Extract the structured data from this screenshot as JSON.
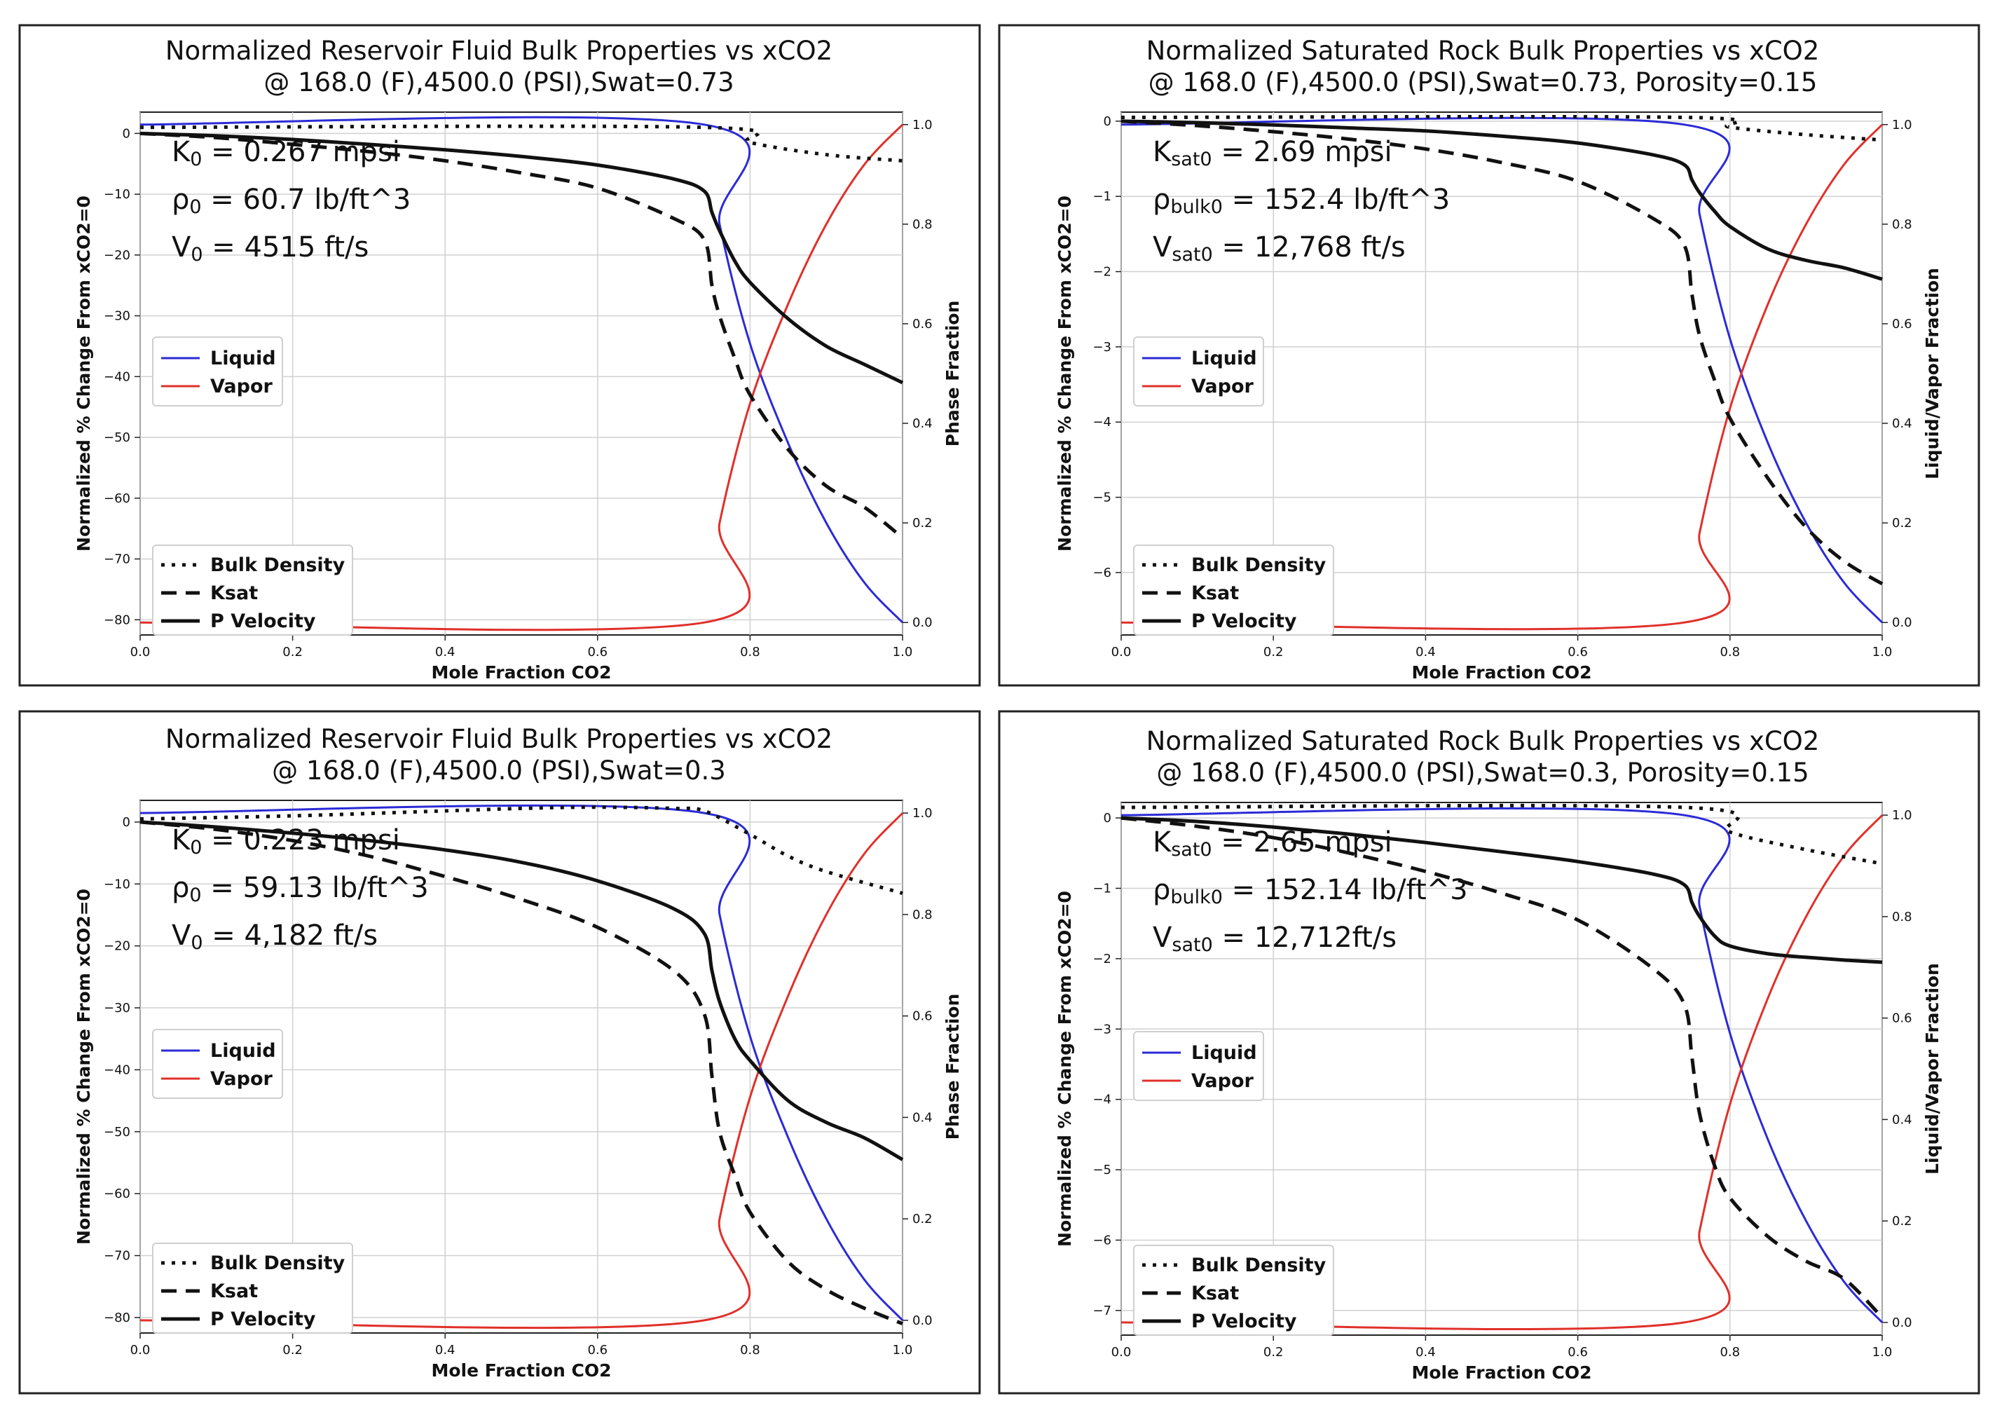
{
  "chart_data": [
    {
      "type": "line",
      "title": "Normalized Reservoir Fluid Bulk Properties vs xCO2",
      "subtitle": "@ 168.0 (F),4500.0 (PSI),Swat=0.73",
      "xlabel": "Mole Fraction CO2",
      "ylabel": "Normalized % Change From xCO2=0",
      "y2label": "Phase Fraction",
      "xlim": [
        0,
        1
      ],
      "ylim": [
        -82.5,
        3.5
      ],
      "y2lim": [
        -0.025,
        1.025
      ],
      "xticks": [
        "0.0",
        "0.2",
        "0.4",
        "0.6",
        "0.8",
        "1.0"
      ],
      "yticks": [
        "0",
        "−10",
        "−20",
        "−30",
        "−40",
        "−50",
        "−60",
        "−70",
        "−80"
      ],
      "y2ticks": [
        "0.0",
        "0.2",
        "0.4",
        "0.6",
        "0.8",
        "1.0"
      ],
      "grid": true,
      "annotation": [
        {
          "main": "K",
          "sub": "0",
          "rest": " = 0.267 mpsi"
        },
        {
          "main": "ρ",
          "sub": "0",
          "rest": " = 60.7 lb/ft^3"
        },
        {
          "main": "V",
          "sub": "0",
          "rest": " = 4515 ft/s"
        }
      ],
      "legend_phase": {
        "placement": "center-left",
        "entries": [
          "Liquid",
          "Vapor"
        ]
      },
      "legend_props": {
        "placement": "lower-left",
        "entries": [
          "Bulk Density",
          "Ksat",
          "P Velocity"
        ]
      },
      "series": [
        {
          "name": "Liquid",
          "axis": "right",
          "color": "#2b2bd6",
          "dash": "solid",
          "x": [
            0,
            0.74,
            0.76,
            0.8,
            0.85,
            0.9,
            0.95,
            1.0
          ],
          "y": [
            1.0,
            1.0,
            0.8,
            0.56,
            0.36,
            0.2,
            0.08,
            0.0
          ]
        },
        {
          "name": "Vapor",
          "axis": "right",
          "color": "#e0302a",
          "dash": "solid",
          "x": [
            0,
            0.74,
            0.76,
            0.8,
            0.85,
            0.9,
            0.95,
            1.0
          ],
          "y": [
            0.0,
            0.0,
            0.2,
            0.44,
            0.64,
            0.8,
            0.92,
            1.0
          ]
        },
        {
          "name": "Bulk Density",
          "axis": "left",
          "color": "#111111",
          "dash": "dot",
          "x": [
            0,
            0.74,
            0.8,
            0.9,
            1.0
          ],
          "y": [
            1.0,
            1.0,
            -1.5,
            -3.5,
            -4.5
          ]
        },
        {
          "name": "Ksat",
          "axis": "left",
          "color": "#111111",
          "dash": "dash",
          "x": [
            0,
            0.1,
            0.2,
            0.3,
            0.4,
            0.5,
            0.6,
            0.7,
            0.74,
            0.75,
            0.76,
            0.78,
            0.8,
            0.85,
            0.9,
            0.95,
            1.0
          ],
          "y": [
            0,
            -0.7,
            -1.8,
            -3.0,
            -4.5,
            -6.5,
            -9.0,
            -14.0,
            -17.5,
            -25.0,
            -30.0,
            -37.0,
            -43.0,
            -52.0,
            -58.0,
            -61.5,
            -66.5
          ]
        },
        {
          "name": "P Velocity",
          "axis": "left",
          "color": "#111111",
          "dash": "solid",
          "x": [
            0,
            0.1,
            0.2,
            0.3,
            0.4,
            0.5,
            0.6,
            0.7,
            0.74,
            0.75,
            0.76,
            0.78,
            0.8,
            0.85,
            0.9,
            0.95,
            1.0
          ],
          "y": [
            0,
            -0.4,
            -1.0,
            -1.8,
            -2.7,
            -3.8,
            -5.2,
            -7.5,
            -9.5,
            -13.0,
            -16.0,
            -21.0,
            -24.5,
            -30.5,
            -35.0,
            -38.0,
            -41.0
          ]
        }
      ]
    },
    {
      "type": "line",
      "title": "Normalized Saturated Rock Bulk Properties vs xCO2",
      "subtitle": "@ 168.0 (F),4500.0 (PSI),Swat=0.73, Porosity=0.15",
      "xlabel": "Mole Fraction CO2",
      "ylabel": "Normalized % Change From xCO2=0",
      "y2label": "Liquid/Vapor Fraction",
      "xlim": [
        0,
        1
      ],
      "ylim": [
        -6.83,
        0.12
      ],
      "y2lim": [
        -0.025,
        1.025
      ],
      "xticks": [
        "0.0",
        "0.2",
        "0.4",
        "0.6",
        "0.8",
        "1.0"
      ],
      "yticks": [
        "0",
        "−1",
        "−2",
        "−3",
        "−4",
        "−5",
        "−6"
      ],
      "y2ticks": [
        "0.0",
        "0.2",
        "0.4",
        "0.6",
        "0.8",
        "1.0"
      ],
      "grid": true,
      "annotation": [
        {
          "main": "K",
          "sub": "sat0",
          "rest": " = 2.69 mpsi"
        },
        {
          "main": "ρ",
          "sub": "bulk0",
          "rest": " = 152.4 lb/ft^3"
        },
        {
          "main": "V",
          "sub": "sat0",
          "rest": " = 12,768 ft/s"
        }
      ],
      "legend_phase": {
        "placement": "center-left",
        "entries": [
          "Liquid",
          "Vapor"
        ]
      },
      "legend_props": {
        "placement": "lower-left",
        "entries": [
          "Bulk Density",
          "Ksat",
          "P Velocity"
        ]
      },
      "series": [
        {
          "name": "Liquid",
          "axis": "right",
          "color": "#2b2bd6",
          "dash": "solid",
          "x": [
            0,
            0.74,
            0.76,
            0.8,
            0.85,
            0.9,
            0.95,
            1.0
          ],
          "y": [
            1.0,
            1.0,
            0.82,
            0.57,
            0.36,
            0.2,
            0.08,
            0.0
          ]
        },
        {
          "name": "Vapor",
          "axis": "right",
          "color": "#e0302a",
          "dash": "solid",
          "x": [
            0,
            0.74,
            0.76,
            0.8,
            0.85,
            0.9,
            0.95,
            1.0
          ],
          "y": [
            0.0,
            0.0,
            0.18,
            0.43,
            0.64,
            0.8,
            0.92,
            1.0
          ]
        },
        {
          "name": "Bulk Density",
          "axis": "left",
          "color": "#111111",
          "dash": "dot",
          "x": [
            0,
            0.74,
            0.8,
            0.9,
            1.0
          ],
          "y": [
            0.05,
            0.05,
            -0.08,
            -0.18,
            -0.25
          ]
        },
        {
          "name": "Ksat",
          "axis": "left",
          "color": "#111111",
          "dash": "dash",
          "x": [
            0,
            0.1,
            0.2,
            0.3,
            0.4,
            0.5,
            0.6,
            0.7,
            0.74,
            0.75,
            0.76,
            0.78,
            0.8,
            0.85,
            0.9,
            0.95,
            1.0
          ],
          "y": [
            0,
            -0.06,
            -0.14,
            -0.24,
            -0.37,
            -0.55,
            -0.8,
            -1.3,
            -1.65,
            -2.3,
            -2.85,
            -3.45,
            -3.95,
            -4.75,
            -5.4,
            -5.85,
            -6.15
          ]
        },
        {
          "name": "P Velocity",
          "axis": "left",
          "color": "#111111",
          "dash": "solid",
          "x": [
            0,
            0.1,
            0.2,
            0.3,
            0.4,
            0.5,
            0.6,
            0.7,
            0.74,
            0.75,
            0.76,
            0.78,
            0.8,
            0.85,
            0.9,
            0.95,
            1.0
          ],
          "y": [
            0,
            -0.02,
            -0.05,
            -0.09,
            -0.13,
            -0.2,
            -0.29,
            -0.45,
            -0.58,
            -0.78,
            -0.95,
            -1.2,
            -1.4,
            -1.7,
            -1.85,
            -1.95,
            -2.1
          ]
        }
      ]
    },
    {
      "type": "line",
      "title": "Normalized Reservoir Fluid Bulk Properties vs xCO2",
      "subtitle": "@ 168.0 (F),4500.0 (PSI),Swat=0.3",
      "xlabel": "Mole Fraction CO2",
      "ylabel": "Normalized % Change From xCO2=0",
      "y2label": "Phase Fraction",
      "xlim": [
        0,
        1
      ],
      "ylim": [
        -82.5,
        3.5
      ],
      "y2lim": [
        -0.025,
        1.025
      ],
      "xticks": [
        "0.0",
        "0.2",
        "0.4",
        "0.6",
        "0.8",
        "1.0"
      ],
      "yticks": [
        "0",
        "−10",
        "−20",
        "−30",
        "−40",
        "−50",
        "−60",
        "−70",
        "−80"
      ],
      "y2ticks": [
        "0.0",
        "0.2",
        "0.4",
        "0.6",
        "0.8",
        "1.0"
      ],
      "grid": true,
      "annotation": [
        {
          "main": "K",
          "sub": "0",
          "rest": " = 0.223 mpsi"
        },
        {
          "main": "ρ",
          "sub": "0",
          "rest": " = 59.13 lb/ft^3"
        },
        {
          "main": "V",
          "sub": "0",
          "rest": " = 4,182 ft/s"
        }
      ],
      "legend_phase": {
        "placement": "center-left",
        "entries": [
          "Liquid",
          "Vapor"
        ]
      },
      "legend_props": {
        "placement": "lower-left",
        "entries": [
          "Bulk Density",
          "Ksat",
          "P Velocity"
        ]
      },
      "series": [
        {
          "name": "Liquid",
          "axis": "right",
          "color": "#2b2bd6",
          "dash": "solid",
          "x": [
            0,
            0.74,
            0.76,
            0.8,
            0.85,
            0.9,
            0.95,
            1.0
          ],
          "y": [
            1.0,
            1.0,
            0.8,
            0.56,
            0.36,
            0.2,
            0.08,
            0.0
          ]
        },
        {
          "name": "Vapor",
          "axis": "right",
          "color": "#e0302a",
          "dash": "solid",
          "x": [
            0,
            0.74,
            0.76,
            0.8,
            0.85,
            0.9,
            0.95,
            1.0
          ],
          "y": [
            0.0,
            0.0,
            0.2,
            0.44,
            0.64,
            0.8,
            0.92,
            1.0
          ]
        },
        {
          "name": "Bulk Density",
          "axis": "left",
          "color": "#111111",
          "dash": "dot",
          "x": [
            0,
            0.2,
            0.4,
            0.5,
            0.6,
            0.7,
            0.74,
            0.8,
            0.85,
            0.9,
            1.0
          ],
          "y": [
            0.5,
            1.0,
            1.8,
            2.2,
            2.4,
            2.2,
            1.8,
            -2.0,
            -5.5,
            -8.0,
            -11.5
          ]
        },
        {
          "name": "Ksat",
          "axis": "left",
          "color": "#111111",
          "dash": "dash",
          "x": [
            0,
            0.1,
            0.2,
            0.3,
            0.4,
            0.5,
            0.6,
            0.7,
            0.74,
            0.75,
            0.76,
            0.78,
            0.8,
            0.85,
            0.9,
            0.95,
            1.0
          ],
          "y": [
            0,
            -1.2,
            -3.0,
            -5.5,
            -8.8,
            -12.5,
            -17.0,
            -24.0,
            -31.0,
            -41.0,
            -50.0,
            -57.0,
            -63.0,
            -71.0,
            -75.5,
            -78.5,
            -81.0
          ]
        },
        {
          "name": "P Velocity",
          "axis": "left",
          "color": "#111111",
          "dash": "solid",
          "x": [
            0,
            0.1,
            0.2,
            0.3,
            0.4,
            0.5,
            0.6,
            0.7,
            0.74,
            0.75,
            0.76,
            0.78,
            0.8,
            0.85,
            0.9,
            0.95,
            1.0
          ],
          "y": [
            0,
            -0.8,
            -1.8,
            -3.0,
            -4.5,
            -6.5,
            -9.5,
            -14.0,
            -18.0,
            -24.0,
            -29.0,
            -35.0,
            -38.5,
            -45.0,
            -48.5,
            -51.0,
            -54.5
          ]
        }
      ]
    },
    {
      "type": "line",
      "title": "Normalized Saturated Rock Bulk Properties vs xCO2",
      "subtitle": "@ 168.0 (F),4500.0 (PSI),Swat=0.3, Porosity=0.15",
      "xlabel": "Mole Fraction CO2",
      "ylabel": "Normalized % Change From xCO2=0",
      "y2label": "Liquid/Vapor Fraction",
      "xlim": [
        0,
        1
      ],
      "ylim": [
        -7.35,
        0.22
      ],
      "y2lim": [
        -0.025,
        1.025
      ],
      "xticks": [
        "0.0",
        "0.2",
        "0.4",
        "0.6",
        "0.8",
        "1.0"
      ],
      "yticks": [
        "0",
        "−1",
        "−2",
        "−3",
        "−4",
        "−5",
        "−6",
        "−7"
      ],
      "y2ticks": [
        "0.0",
        "0.2",
        "0.4",
        "0.6",
        "0.8",
        "1.0"
      ],
      "grid": true,
      "annotation": [
        {
          "main": "K",
          "sub": "sat0",
          "rest": " = 2.65 mpsi"
        },
        {
          "main": "ρ",
          "sub": "bulk0",
          "rest": " = 152.14 lb/ft^3"
        },
        {
          "main": "V",
          "sub": "sat0",
          "rest": " = 12,712ft/s"
        }
      ],
      "legend_phase": {
        "placement": "center-left",
        "entries": [
          "Liquid",
          "Vapor"
        ]
      },
      "legend_props": {
        "placement": "lower-left",
        "entries": [
          "Bulk Density",
          "Ksat",
          "P Velocity"
        ]
      },
      "series": [
        {
          "name": "Liquid",
          "axis": "right",
          "color": "#2b2bd6",
          "dash": "solid",
          "x": [
            0,
            0.74,
            0.76,
            0.8,
            0.85,
            0.9,
            0.95,
            1.0
          ],
          "y": [
            1.0,
            1.0,
            0.82,
            0.57,
            0.36,
            0.2,
            0.08,
            0.0
          ]
        },
        {
          "name": "Vapor",
          "axis": "right",
          "color": "#e0302a",
          "dash": "solid",
          "x": [
            0,
            0.74,
            0.76,
            0.8,
            0.85,
            0.9,
            0.95,
            1.0
          ],
          "y": [
            0.0,
            0.0,
            0.18,
            0.43,
            0.64,
            0.8,
            0.92,
            1.0
          ]
        },
        {
          "name": "Bulk Density",
          "axis": "left",
          "color": "#111111",
          "dash": "dot",
          "x": [
            0,
            0.74,
            0.8,
            0.9,
            1.0
          ],
          "y": [
            0.15,
            0.15,
            -0.2,
            -0.45,
            -0.65
          ]
        },
        {
          "name": "Ksat",
          "axis": "left",
          "color": "#111111",
          "dash": "dash",
          "x": [
            0,
            0.1,
            0.2,
            0.3,
            0.4,
            0.5,
            0.6,
            0.7,
            0.74,
            0.75,
            0.76,
            0.78,
            0.8,
            0.85,
            0.9,
            0.95,
            1.0
          ],
          "y": [
            0,
            -0.12,
            -0.28,
            -0.5,
            -0.76,
            -1.07,
            -1.45,
            -2.15,
            -2.65,
            -3.4,
            -4.2,
            -4.95,
            -5.4,
            -5.95,
            -6.3,
            -6.55,
            -7.1
          ]
        },
        {
          "name": "P Velocity",
          "axis": "left",
          "color": "#111111",
          "dash": "solid",
          "x": [
            0,
            0.1,
            0.2,
            0.3,
            0.4,
            0.5,
            0.6,
            0.7,
            0.74,
            0.75,
            0.76,
            0.78,
            0.8,
            0.85,
            0.9,
            0.95,
            1.0
          ],
          "y": [
            0,
            -0.05,
            -0.13,
            -0.23,
            -0.35,
            -0.48,
            -0.62,
            -0.8,
            -0.95,
            -1.2,
            -1.4,
            -1.68,
            -1.82,
            -1.93,
            -1.98,
            -2.02,
            -2.05
          ]
        }
      ]
    }
  ]
}
